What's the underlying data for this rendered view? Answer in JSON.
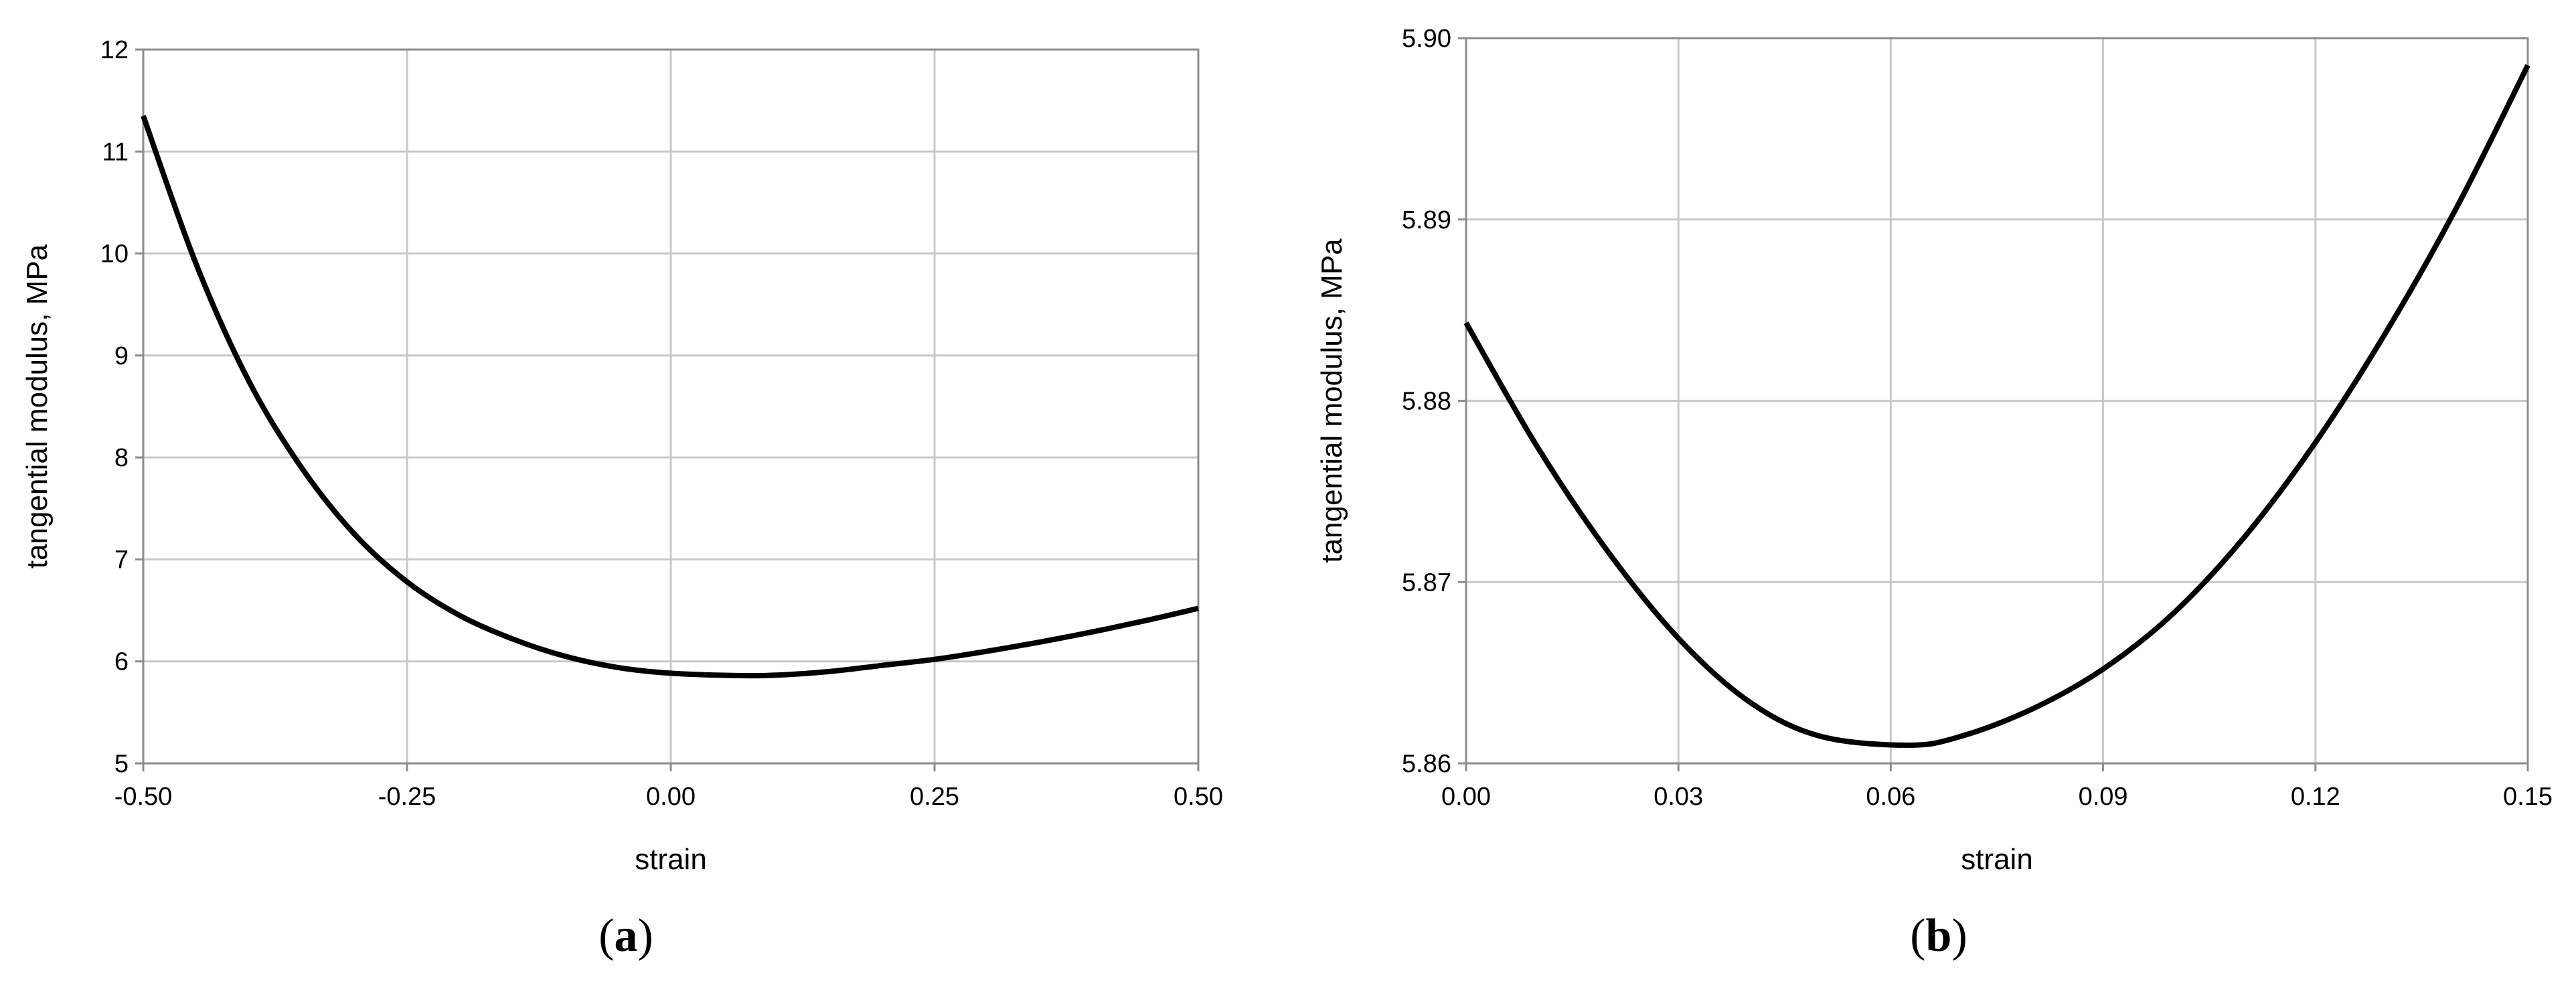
{
  "chart_data": [
    {
      "type": "line",
      "panel_label": "a",
      "xlabel": "strain",
      "ylabel": "tangential modulus, MPa",
      "xlim": [
        -0.5,
        0.5
      ],
      "ylim": [
        5,
        12
      ],
      "x_ticks": [
        "-0.50",
        "-0.25",
        "0.00",
        "0.25",
        "0.50"
      ],
      "y_ticks": [
        "5",
        "6",
        "7",
        "8",
        "9",
        "10",
        "11",
        "12"
      ],
      "grid": true,
      "series": [
        {
          "color": "#000000",
          "x": [
            -0.5,
            -0.45,
            -0.4,
            -0.35,
            -0.3,
            -0.25,
            -0.2,
            -0.15,
            -0.1,
            -0.05,
            0.0,
            0.0625,
            0.1,
            0.15,
            0.2,
            0.25,
            0.3,
            0.35,
            0.4,
            0.45,
            0.5
          ],
          "y": [
            11.35,
            9.9,
            8.75,
            7.9,
            7.25,
            6.78,
            6.45,
            6.22,
            6.05,
            5.94,
            5.884,
            5.861,
            5.865,
            5.9,
            5.96,
            6.02,
            6.1,
            6.19,
            6.29,
            6.4,
            6.52
          ]
        }
      ]
    },
    {
      "type": "line",
      "panel_label": "b",
      "xlabel": "strain",
      "ylabel": "tangential modulus, MPa",
      "xlim": [
        0,
        0.15
      ],
      "ylim": [
        5.86,
        5.9
      ],
      "x_ticks": [
        "0.00",
        "0.03",
        "0.06",
        "0.09",
        "0.12",
        "0.15"
      ],
      "y_ticks": [
        "5.86",
        "5.87",
        "5.88",
        "5.89",
        "5.90"
      ],
      "grid": true,
      "series": [
        {
          "color": "#000000",
          "x": [
            0.0,
            0.01,
            0.02,
            0.03,
            0.04,
            0.05,
            0.0625,
            0.07,
            0.08,
            0.09,
            0.1,
            0.11,
            0.12,
            0.13,
            0.14,
            0.15
          ],
          "y": [
            5.8843,
            5.8775,
            5.8717,
            5.8669,
            5.8634,
            5.8615,
            5.861,
            5.8615,
            5.863,
            5.8652,
            5.8683,
            5.8725,
            5.8777,
            5.8838,
            5.8907,
            5.8985
          ]
        }
      ]
    }
  ]
}
